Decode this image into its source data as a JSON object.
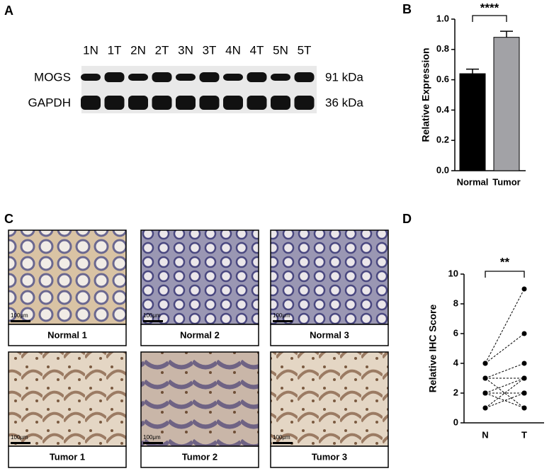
{
  "panels": {
    "a": "A",
    "b": "B",
    "c": "C",
    "d": "D"
  },
  "blot": {
    "lanes": [
      "1N",
      "1T",
      "2N",
      "2T",
      "3N",
      "3T",
      "4N",
      "4T",
      "5N",
      "5T"
    ],
    "proteins": [
      {
        "name": "MOGS",
        "size": "91 kDa"
      },
      {
        "name": "GAPDH",
        "size": "36 kDa"
      }
    ]
  },
  "ihc": {
    "captions": [
      "Normal 1",
      "Normal 2",
      "Normal 3",
      "Tumor 1",
      "Tumor 2",
      "Tumor 3"
    ],
    "scale_bar": "100μm"
  },
  "chart_data": [
    {
      "type": "bar",
      "ylabel": "Relative Expression",
      "categories": [
        "Normal",
        "Tumor"
      ],
      "values": [
        0.64,
        0.88
      ],
      "errors": [
        0.03,
        0.04
      ],
      "colors": [
        "#000000",
        "#a2a2a6"
      ],
      "ylim": [
        0,
        1.0
      ],
      "yticks": [
        {
          "value": 0,
          "label": "0.0"
        },
        0.2,
        0.4,
        0.6,
        0.8,
        {
          "value": 1.0,
          "label": "1.0"
        }
      ],
      "annotation": "****"
    },
    {
      "type": "paired",
      "ylabel": "Relative IHC Score",
      "categories": [
        "N",
        "T"
      ],
      "values": [
        [
          4,
          4,
          3,
          3,
          2,
          2,
          2,
          2,
          1,
          1,
          2,
          3
        ],
        [
          9,
          6,
          4,
          3,
          2,
          2,
          3,
          1,
          2,
          3,
          2,
          1
        ]
      ],
      "color": "#000000",
      "ylim": [
        0,
        10
      ],
      "yticks": [
        0,
        2,
        4,
        6,
        8,
        10
      ],
      "annotation": "**"
    }
  ]
}
